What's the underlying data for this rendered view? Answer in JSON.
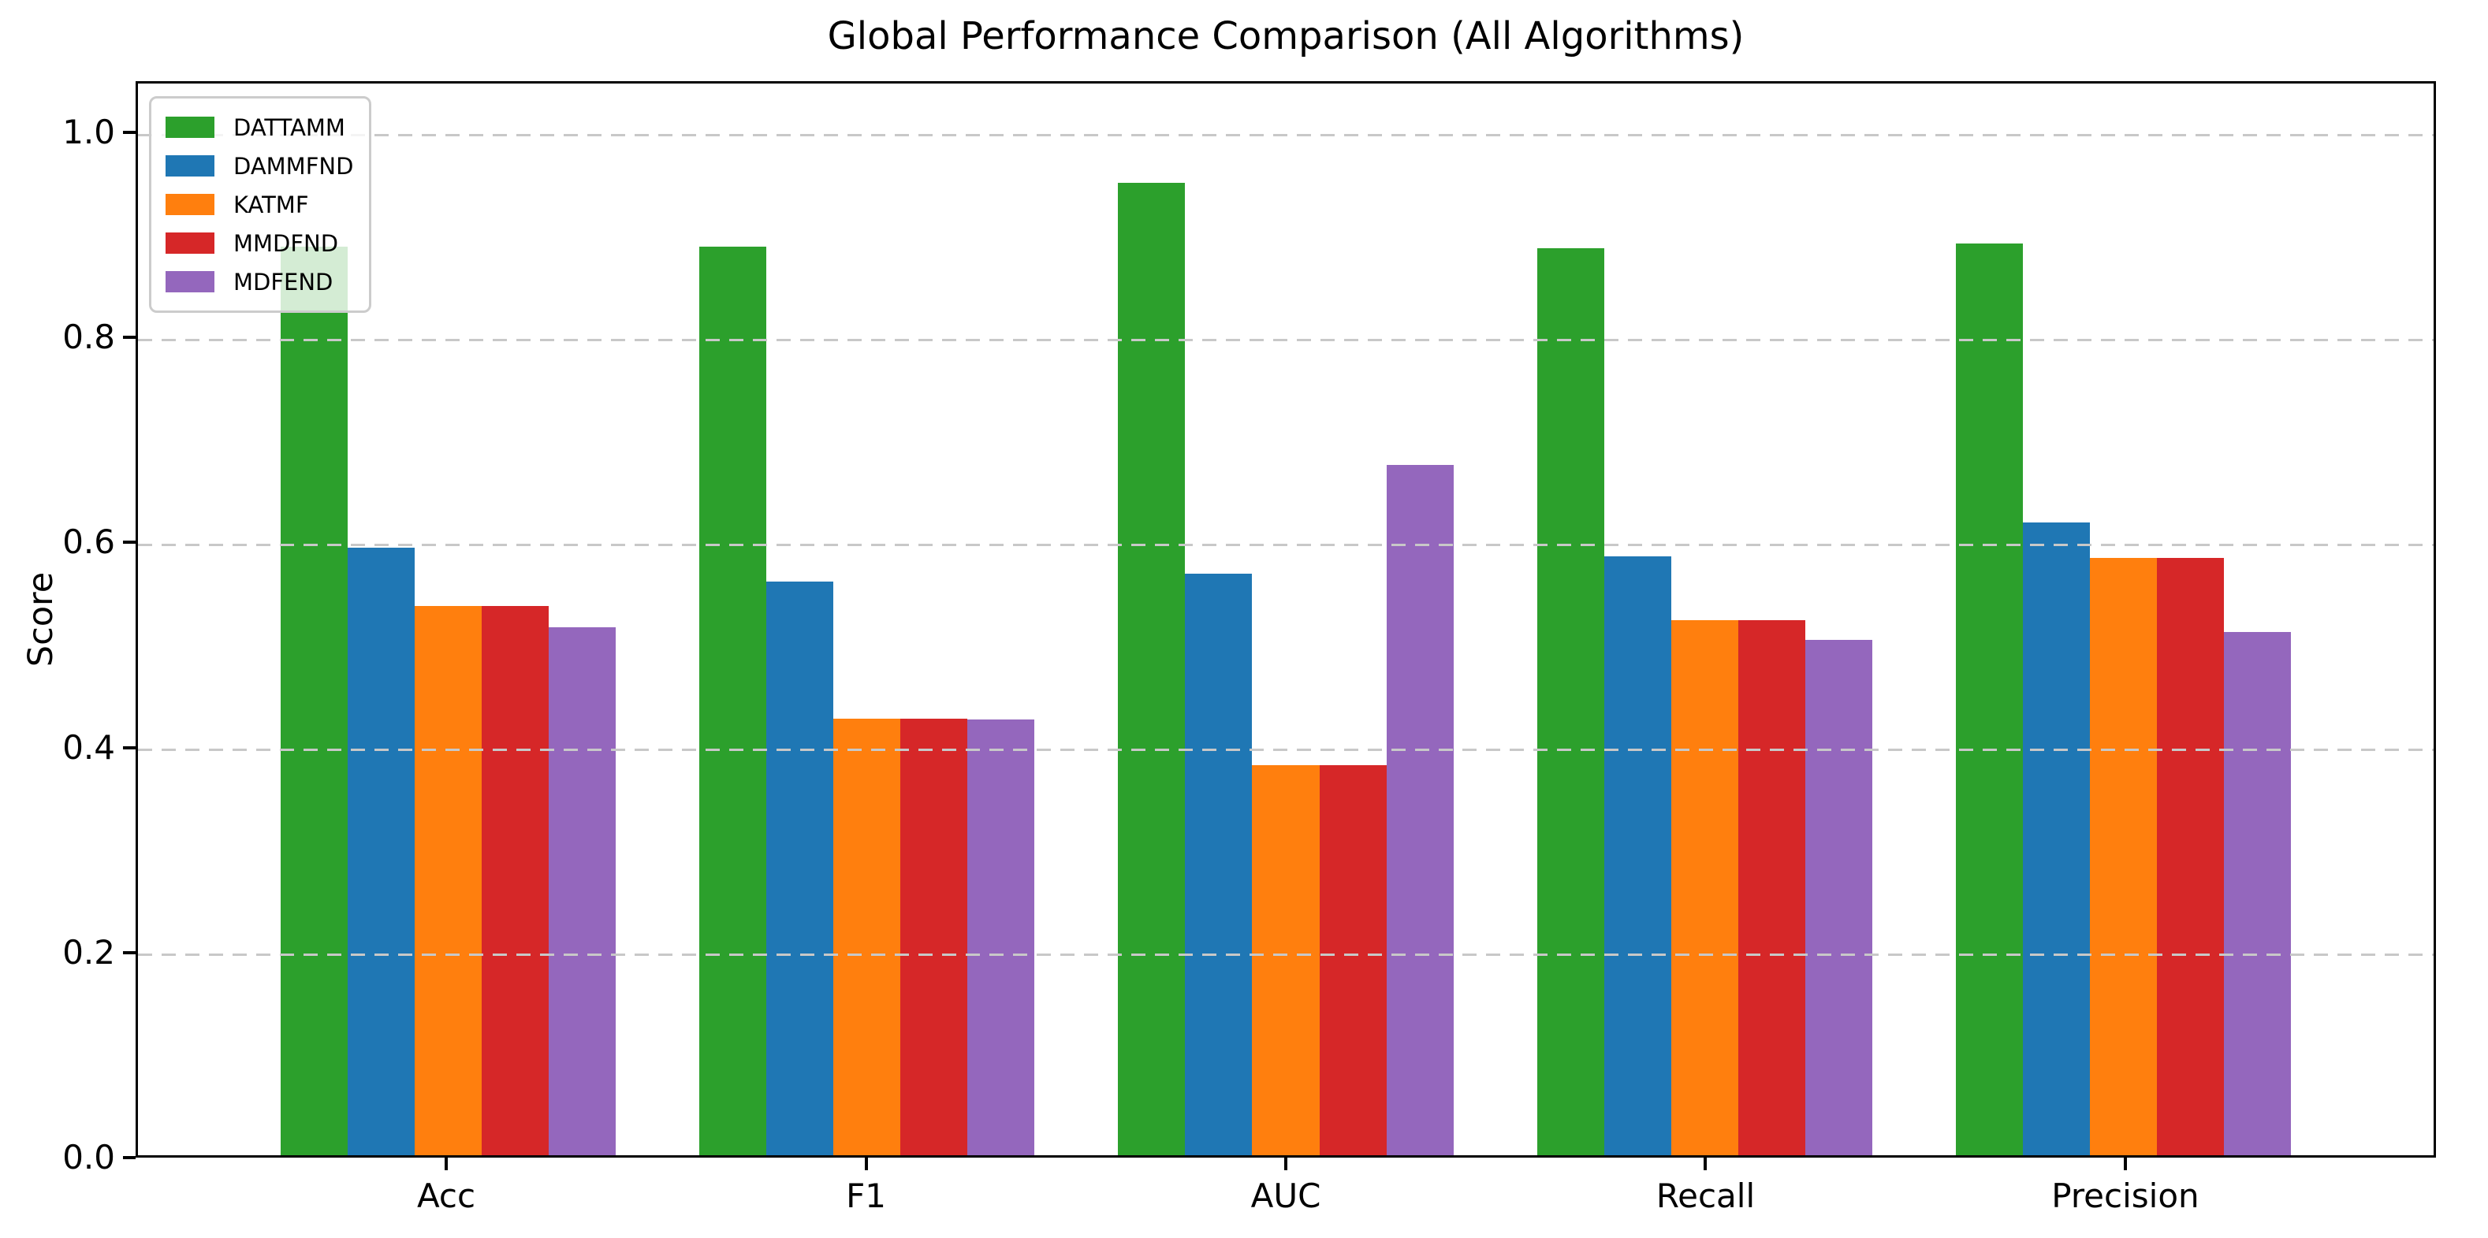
{
  "chart_data": {
    "type": "bar",
    "title": "Global Performance Comparison (All Algorithms)",
    "xlabel": "",
    "ylabel": "Score",
    "categories": [
      "Acc",
      "F1",
      "AUC",
      "Recall",
      "Precision"
    ],
    "series": [
      {
        "name": "DATTAMM",
        "color": "#2ca02c",
        "values": [
          0.89,
          0.89,
          0.953,
          0.889,
          0.893
        ]
      },
      {
        "name": "DAMMFND",
        "color": "#1f77b4",
        "values": [
          0.595,
          0.562,
          0.57,
          0.587,
          0.62
        ]
      },
      {
        "name": "KATMF",
        "color": "#ff7f0e",
        "values": [
          0.538,
          0.428,
          0.382,
          0.524,
          0.585
        ]
      },
      {
        "name": "MMDFND",
        "color": "#d62728",
        "values": [
          0.538,
          0.428,
          0.382,
          0.524,
          0.585
        ]
      },
      {
        "name": "MDFEND",
        "color": "#9467bd",
        "values": [
          0.517,
          0.427,
          0.676,
          0.505,
          0.513
        ]
      }
    ],
    "yticks": [
      0.0,
      0.2,
      0.4,
      0.6,
      0.8,
      1.0
    ],
    "ytick_labels": [
      "0.0",
      "0.2",
      "0.4",
      "0.6",
      "0.8",
      "1.0"
    ],
    "ylim": [
      0,
      1.05
    ],
    "bar_width_units": 0.16,
    "x_margin_units": 0.24,
    "grid": "horizontal dashed, above bars",
    "grid_color": "#c8c8c8",
    "legend_position": "upper left",
    "legend_frame_color": "#cccccc"
  }
}
